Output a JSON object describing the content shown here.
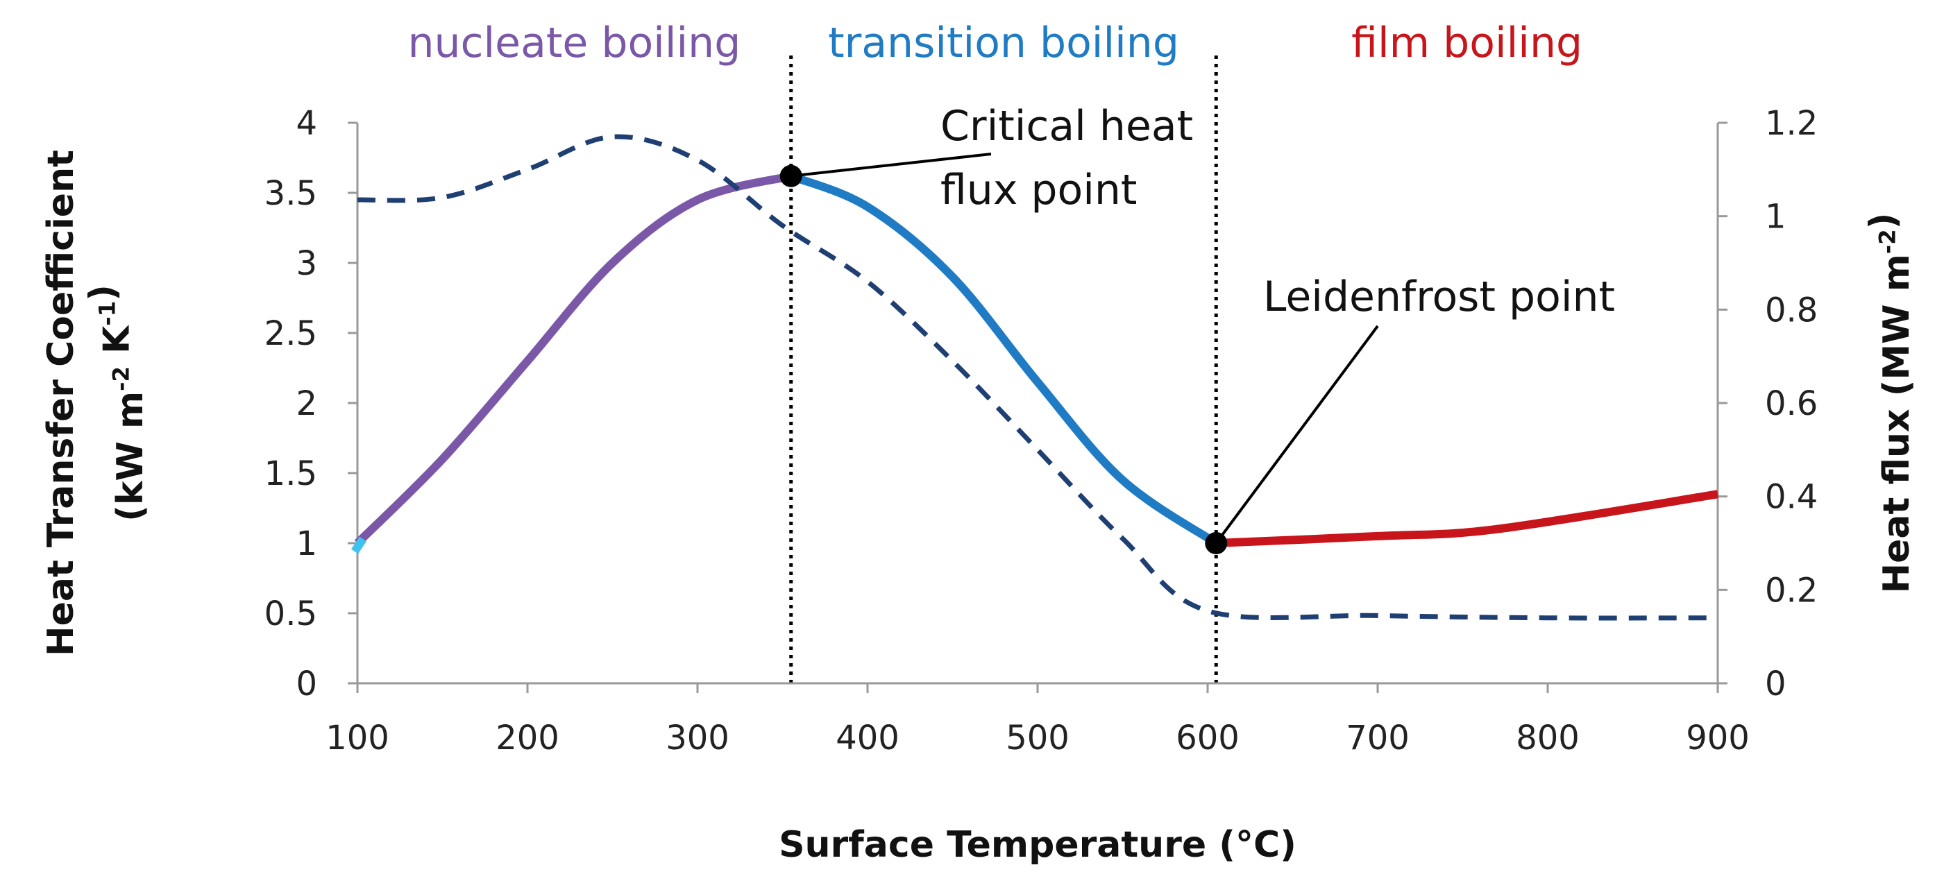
{
  "chart_data": {
    "type": "line",
    "title": "",
    "xlabel": "Surface Temperature (°C)",
    "ylabel_left": "Heat Transfer Coefficient (kW m-2 K-1)",
    "ylabel_left_lines": [
      "Heat Transfer Coefficient",
      "(kW m-2 K-1)"
    ],
    "ylabel_right": "Heat flux  (MW m-2)",
    "xlim": [
      100,
      900
    ],
    "ylim_left": [
      0,
      4
    ],
    "ylim_right": [
      0,
      1.2
    ],
    "x_ticks": [
      "100",
      "200",
      "300",
      "400",
      "500",
      "600",
      "700",
      "800",
      "900"
    ],
    "y_left_ticks": [
      "0",
      "0.5",
      "1",
      "1.5",
      "2",
      "2.5",
      "3",
      "3.5",
      "4"
    ],
    "y_right_ticks": [
      "0",
      "0.2",
      "0.4",
      "0.6",
      "0.8",
      "1",
      "1.2"
    ],
    "grid": false,
    "regions": [
      {
        "label": "nucleate boiling",
        "color": "#7B57A8",
        "x_range": [
          100,
          355
        ]
      },
      {
        "label": "transition boiling",
        "color": "#1F7BC4",
        "x_range": [
          355,
          605
        ]
      },
      {
        "label": "film boiling",
        "color": "#C8151B",
        "x_range": [
          605,
          900
        ]
      }
    ],
    "vertical_lines": [
      355,
      605
    ],
    "series": [
      {
        "name": "",
        "axis": "left",
        "style": "solid",
        "segments": [
          {
            "color": "#7B57A8",
            "x": [
              100,
              150,
              200,
              250,
              300,
              355
            ],
            "y": [
              1.0,
              1.6,
              2.3,
              3.0,
              3.45,
              3.62
            ]
          },
          {
            "color": "#1F7BC4",
            "x": [
              355,
              400,
              450,
              500,
              550,
              605
            ],
            "y": [
              3.62,
              3.4,
              2.9,
              2.15,
              1.45,
              1.0
            ]
          },
          {
            "color": "#C8151B",
            "x": [
              605,
              700,
              770,
              900
            ],
            "y": [
              1.0,
              1.05,
              1.1,
              1.35
            ]
          }
        ]
      },
      {
        "name": "",
        "axis": "right",
        "style": "dashed",
        "color": "#1F3F73",
        "x": [
          100,
          150,
          200,
          250,
          300,
          350,
          400,
          450,
          500,
          550,
          600,
          700,
          800,
          900
        ],
        "y": [
          1.035,
          1.04,
          1.1,
          1.17,
          1.12,
          0.98,
          0.86,
          0.69,
          0.5,
          0.31,
          0.155,
          0.145,
          0.14,
          0.14
        ]
      }
    ],
    "annotations": [
      {
        "lines": [
          "Critical heat",
          "flux point"
        ],
        "x": 355,
        "y": 3.62
      },
      {
        "lines": [
          "Leidenfrost point"
        ],
        "x": 605,
        "y": 1.0
      }
    ]
  }
}
